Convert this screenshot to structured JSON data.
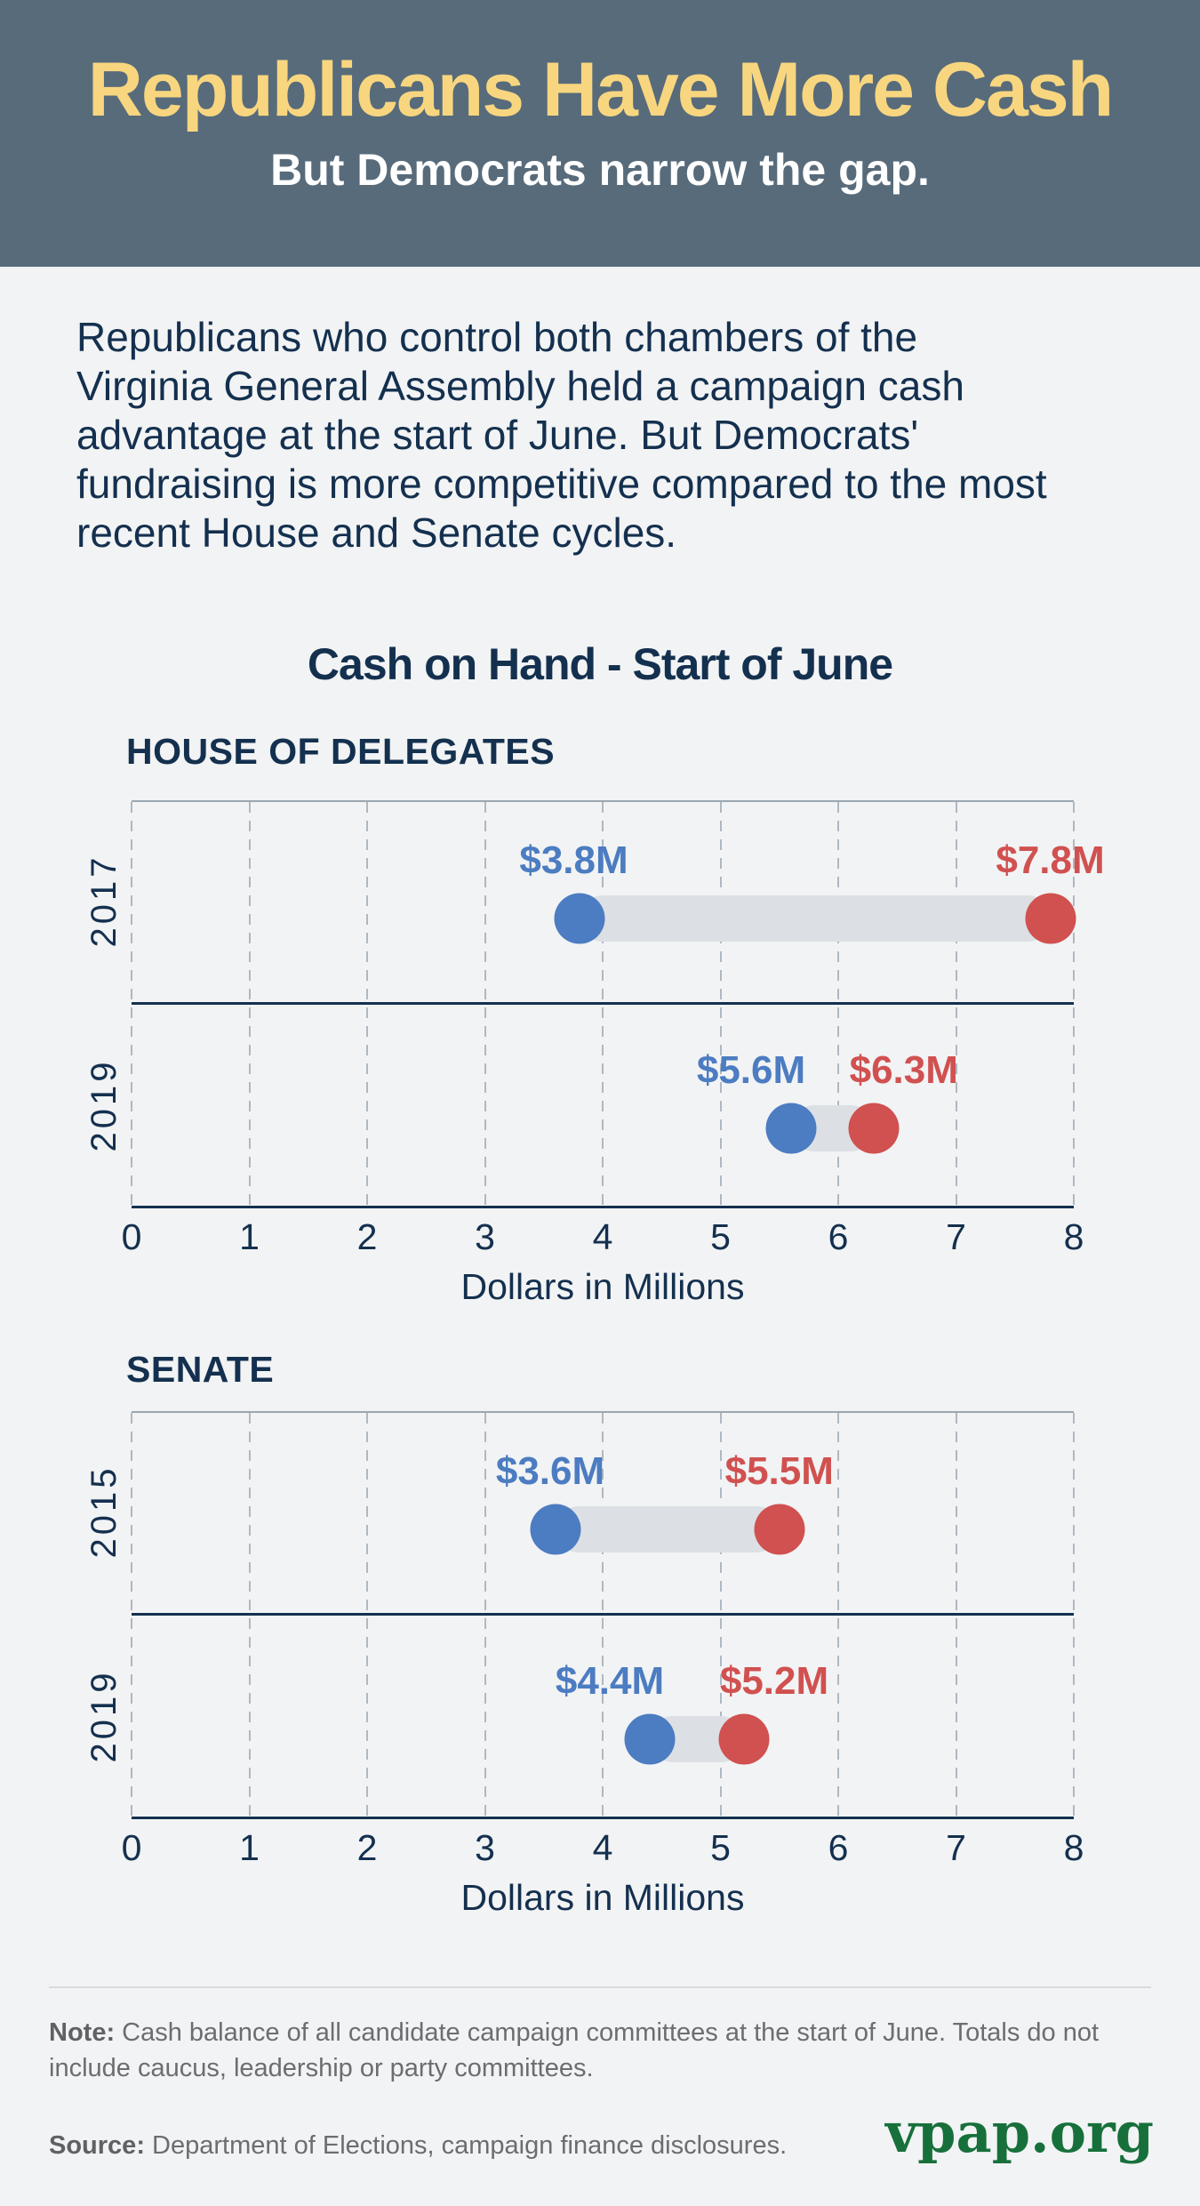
{
  "header": {
    "title": "Republicans Have More Cash",
    "subtitle": "But Democrats narrow the gap."
  },
  "intro_lines": [
    "Republicans who control both chambers of the",
    "Virginia General Assembly held a campaign cash",
    "advantage at the start of June. But Democrats'",
    "fundraising is more competitive compared to the most",
    "recent House and Senate cycles."
  ],
  "colors": {
    "header_background": "#576B7B",
    "headline_yellow": "#F8D67F",
    "navy_text": "#14304F",
    "democrat_blue": "#4C7CC1",
    "republican_red": "#D05150",
    "connector_gray": "#DCE0E4",
    "logo_green": "#17703B"
  },
  "chart_data": {
    "type": "dumbbell",
    "title": "Cash on Hand - Start of June",
    "xlabel": "Dollars in Millions",
    "xlim": [
      0,
      8
    ],
    "xticks": [
      0,
      1,
      2,
      3,
      4,
      5,
      6,
      7,
      8
    ],
    "grid": "dashed-vertical",
    "units": "millions of dollars",
    "series": [
      {
        "name": "Democrats",
        "color": "#4C7CC1"
      },
      {
        "name": "Republicans",
        "color": "#D05150"
      }
    ],
    "sections": [
      {
        "section": "HOUSE OF DELEGATES",
        "rows": [
          {
            "year": "2017",
            "democrats": 3.8,
            "democrats_label": "$3.8M",
            "republicans": 7.8,
            "republicans_label": "$7.8M"
          },
          {
            "year": "2019",
            "democrats": 5.6,
            "democrats_label": "$5.6M",
            "republicans": 6.3,
            "republicans_label": "$6.3M"
          }
        ]
      },
      {
        "section": "SENATE",
        "rows": [
          {
            "year": "2015",
            "democrats": 3.6,
            "democrats_label": "$3.6M",
            "republicans": 5.5,
            "republicans_label": "$5.5M"
          },
          {
            "year": "2019",
            "democrats": 4.4,
            "democrats_label": "$4.4M",
            "republicans": 5.2,
            "republicans_label": "$5.2M"
          }
        ]
      }
    ]
  },
  "footer": {
    "note_label": "Note:",
    "note_text": " Cash balance of all candidate campaign committees at the start of June. Totals do not include caucus, leadership or party committees.",
    "source_label": "Source:",
    "source_text": " Department of Elections, campaign finance disclosures.",
    "logo": "vpap.org"
  }
}
